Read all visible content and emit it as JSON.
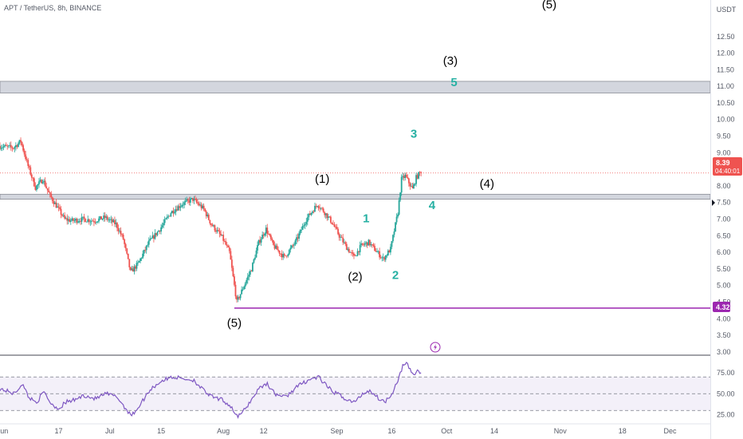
{
  "header": {
    "symbol_title": "APT / TetherUS, 8h, BINANCE",
    "currency": "USDT"
  },
  "price_badge": {
    "value": "8.39",
    "countdown": "04:40:01"
  },
  "support_badge": {
    "value": "4.32"
  },
  "colors": {
    "up": "#26a69a",
    "down": "#ef5350",
    "rsi": "#7e57c2",
    "support": "#9c27b0",
    "zone_fill": "#d1d4dc",
    "wave_black": "#000000",
    "wave_teal": "#26b0a3",
    "price_badge": "#ef5350",
    "support_badge": "#9c27b0"
  },
  "icons": {
    "lightning": "lightning-bolt-icon",
    "scale_marker": "triangle-marker-icon"
  },
  "chart_data": {
    "type": "candlestick",
    "title": "APT / TetherUS, 8h, BINANCE",
    "ylim": [
      2.95,
      13.6
    ],
    "ytick_labels": [
      "3.00",
      "3.50",
      "4.00",
      "4.50",
      "5.00",
      "5.50",
      "6.00",
      "6.50",
      "7.00",
      "7.50",
      "8.00",
      "8.50",
      "9.00",
      "9.50",
      "10.00",
      "10.50",
      "11.00",
      "11.50",
      "12.00",
      "12.50"
    ],
    "xtick_labels": [
      "Jun",
      "17",
      "Jul",
      "15",
      "Aug",
      "12",
      "Sep",
      "16",
      "Oct",
      "14",
      "Nov",
      "18",
      "Dec"
    ],
    "x_range": [
      "2023-06-01",
      "2023-12-12"
    ],
    "x_ticks": [
      "2023-06-01",
      "2023-06-17",
      "2023-07-01",
      "2023-07-15",
      "2023-08-01",
      "2023-08-12",
      "2023-09-01",
      "2023-09-16",
      "2023-10-01",
      "2023-10-14",
      "2023-11-01",
      "2023-11-18",
      "2023-12-01"
    ],
    "last_price": 8.39,
    "zones": [
      {
        "from": 10.8,
        "to": 11.15
      },
      {
        "from": 7.6,
        "to": 7.75
      }
    ],
    "support_line": {
      "price": 4.32,
      "start": "2023-08-04"
    },
    "price_path": [
      [
        "2023-06-01",
        9.2
      ],
      [
        "2023-06-05",
        9.15
      ],
      [
        "2023-06-07",
        9.35
      ],
      [
        "2023-06-09",
        8.6
      ],
      [
        "2023-06-11",
        7.95
      ],
      [
        "2023-06-13",
        8.2
      ],
      [
        "2023-06-15",
        7.7
      ],
      [
        "2023-06-17",
        7.35
      ],
      [
        "2023-06-19",
        7.0
      ],
      [
        "2023-06-21",
        6.95
      ],
      [
        "2023-06-24",
        7.0
      ],
      [
        "2023-06-27",
        6.95
      ],
      [
        "2023-06-30",
        7.05
      ],
      [
        "2023-07-03",
        6.85
      ],
      [
        "2023-07-05",
        6.4
      ],
      [
        "2023-07-07",
        5.4
      ],
      [
        "2023-07-09",
        5.65
      ],
      [
        "2023-07-12",
        6.3
      ],
      [
        "2023-07-15",
        6.7
      ],
      [
        "2023-07-18",
        7.2
      ],
      [
        "2023-07-21",
        7.45
      ],
      [
        "2023-07-24",
        7.6
      ],
      [
        "2023-07-27",
        7.3
      ],
      [
        "2023-07-29",
        6.85
      ],
      [
        "2023-08-01",
        6.45
      ],
      [
        "2023-08-03",
        6.0
      ],
      [
        "2023-08-05",
        4.5
      ],
      [
        "2023-08-07",
        5.0
      ],
      [
        "2023-08-09",
        5.5
      ],
      [
        "2023-08-11",
        6.3
      ],
      [
        "2023-08-13",
        6.7
      ],
      [
        "2023-08-15",
        6.2
      ],
      [
        "2023-08-18",
        5.85
      ],
      [
        "2023-08-21",
        6.3
      ],
      [
        "2023-08-24",
        7.0
      ],
      [
        "2023-08-27",
        7.45
      ],
      [
        "2023-08-29",
        7.2
      ],
      [
        "2023-08-31",
        6.9
      ],
      [
        "2023-09-02",
        6.5
      ],
      [
        "2023-09-04",
        6.15
      ],
      [
        "2023-09-06",
        5.85
      ],
      [
        "2023-09-08",
        6.2
      ],
      [
        "2023-09-10",
        6.3
      ],
      [
        "2023-09-12",
        6.05
      ],
      [
        "2023-09-14",
        5.8
      ],
      [
        "2023-09-16",
        6.1
      ],
      [
        "2023-09-18",
        7.2
      ],
      [
        "2023-09-19",
        8.2
      ],
      [
        "2023-09-20",
        8.3
      ],
      [
        "2023-09-22",
        7.9
      ],
      [
        "2023-09-23",
        8.25
      ],
      [
        "2023-09-24",
        8.39
      ]
    ],
    "rsi": {
      "ylim": [
        15,
        95
      ],
      "levels": [
        70,
        50,
        30
      ],
      "tick_labels": [
        "75.00",
        "50.00",
        "25.00"
      ],
      "path": [
        [
          "2023-06-01",
          56
        ],
        [
          "2023-06-05",
          50
        ],
        [
          "2023-06-07",
          62
        ],
        [
          "2023-06-09",
          45
        ],
        [
          "2023-06-11",
          40
        ],
        [
          "2023-06-13",
          52
        ],
        [
          "2023-06-15",
          38
        ],
        [
          "2023-06-17",
          32
        ],
        [
          "2023-06-19",
          40
        ],
        [
          "2023-06-21",
          42
        ],
        [
          "2023-06-24",
          48
        ],
        [
          "2023-06-27",
          44
        ],
        [
          "2023-06-30",
          50
        ],
        [
          "2023-07-03",
          46
        ],
        [
          "2023-07-05",
          34
        ],
        [
          "2023-07-07",
          24
        ],
        [
          "2023-07-09",
          35
        ],
        [
          "2023-07-12",
          55
        ],
        [
          "2023-07-15",
          65
        ],
        [
          "2023-07-18",
          70
        ],
        [
          "2023-07-21",
          68
        ],
        [
          "2023-07-24",
          66
        ],
        [
          "2023-07-27",
          52
        ],
        [
          "2023-07-29",
          46
        ],
        [
          "2023-08-01",
          42
        ],
        [
          "2023-08-03",
          35
        ],
        [
          "2023-08-05",
          22
        ],
        [
          "2023-08-07",
          32
        ],
        [
          "2023-08-09",
          45
        ],
        [
          "2023-08-11",
          58
        ],
        [
          "2023-08-13",
          62
        ],
        [
          "2023-08-15",
          50
        ],
        [
          "2023-08-18",
          46
        ],
        [
          "2023-08-21",
          58
        ],
        [
          "2023-08-24",
          66
        ],
        [
          "2023-08-27",
          70
        ],
        [
          "2023-08-29",
          60
        ],
        [
          "2023-08-31",
          52
        ],
        [
          "2023-09-02",
          48
        ],
        [
          "2023-09-04",
          42
        ],
        [
          "2023-09-06",
          40
        ],
        [
          "2023-09-08",
          50
        ],
        [
          "2023-09-10",
          54
        ],
        [
          "2023-09-12",
          46
        ],
        [
          "2023-09-14",
          40
        ],
        [
          "2023-09-16",
          50
        ],
        [
          "2023-09-18",
          70
        ],
        [
          "2023-09-19",
          83
        ],
        [
          "2023-09-20",
          86
        ],
        [
          "2023-09-22",
          72
        ],
        [
          "2023-09-23",
          78
        ],
        [
          "2023-09-24",
          74
        ]
      ]
    },
    "wave_labels": [
      {
        "text": "(5)",
        "date": "2023-10-29",
        "price": 13.35,
        "color": "black"
      },
      {
        "text": "(3)",
        "date": "2023-10-02",
        "price": 11.65,
        "color": "black"
      },
      {
        "text": "5",
        "date": "2023-10-03",
        "price": 11.0,
        "color": "teal"
      },
      {
        "text": "3",
        "date": "2023-09-22",
        "price": 9.45,
        "color": "teal"
      },
      {
        "text": "(1)",
        "date": "2023-08-28",
        "price": 8.1,
        "color": "black"
      },
      {
        "text": "(4)",
        "date": "2023-10-12",
        "price": 7.95,
        "color": "black"
      },
      {
        "text": "4",
        "date": "2023-09-27",
        "price": 7.3,
        "color": "teal"
      },
      {
        "text": "1",
        "date": "2023-09-09",
        "price": 6.9,
        "color": "teal"
      },
      {
        "text": "(2)",
        "date": "2023-09-06",
        "price": 5.15,
        "color": "black"
      },
      {
        "text": "2",
        "date": "2023-09-17",
        "price": 5.2,
        "color": "teal"
      },
      {
        "text": "(5)",
        "date": "2023-08-04",
        "price": 3.75,
        "color": "black"
      }
    ]
  }
}
